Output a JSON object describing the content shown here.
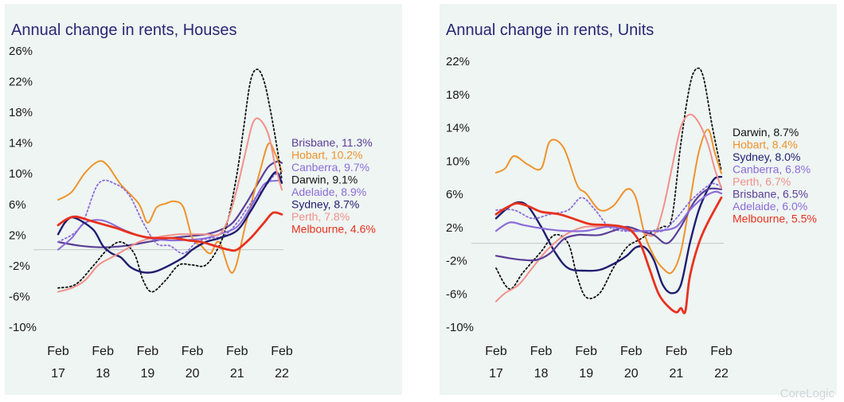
{
  "chart_data": [
    {
      "type": "line",
      "title": "Annual change in rents, Houses",
      "ylim": [
        -10,
        26
      ],
      "y_ticks": [
        26,
        22,
        18,
        14,
        10,
        6,
        2,
        -2,
        -6,
        -10
      ],
      "y_tick_labels": [
        "26%",
        "22%",
        "18%",
        "14%",
        "10%",
        "6%",
        "2%",
        "-2%",
        "-6%",
        "-10%"
      ],
      "x_ticks": [
        2017,
        2018,
        2019,
        2020,
        2021,
        2022
      ],
      "x_tick_labels": [
        [
          "Feb",
          "17"
        ],
        [
          "Feb",
          "18"
        ],
        [
          "Feb",
          "19"
        ],
        [
          "Feb",
          "20"
        ],
        [
          "Feb",
          "21"
        ],
        [
          "Feb",
          "22"
        ]
      ],
      "series": [
        {
          "name": "Brisbane",
          "color": "#5b3e96",
          "dash": false,
          "width": 2.2,
          "x": [
            2017,
            2017.5,
            2018,
            2018.5,
            2019,
            2019.5,
            2020,
            2020.3,
            2020.6,
            2020.9,
            2021.2,
            2021.5,
            2021.7,
            2021.9,
            2022
          ],
          "y": [
            1,
            0.5,
            0.3,
            0.5,
            1,
            1.5,
            1.8,
            2,
            2.5,
            3.5,
            6,
            9,
            10.8,
            11.5,
            11.3
          ]
        },
        {
          "name": "Hobart",
          "color": "#f0922b",
          "dash": false,
          "width": 2,
          "x": [
            2017,
            2017.3,
            2017.6,
            2017.9,
            2018.1,
            2018.4,
            2018.8,
            2019.0,
            2019.2,
            2019.4,
            2019.6,
            2019.8,
            2020,
            2020.2,
            2020.4,
            2020.6,
            2020.9,
            2021.2,
            2021.5,
            2021.7,
            2021.85,
            2022
          ],
          "y": [
            6.5,
            7.5,
            10,
            11.5,
            11,
            8.5,
            6,
            3.5,
            5.5,
            6,
            6.3,
            5.5,
            1.5,
            0.5,
            -0.5,
            1,
            -3,
            3.5,
            10,
            13.8,
            12.5,
            10.2
          ]
        },
        {
          "name": "Canberra",
          "color": "#8c6cd8",
          "dash": true,
          "width": 1.8,
          "x": [
            2017,
            2017.5,
            2017.9,
            2018.3,
            2018.6,
            2018.9,
            2019.2,
            2019.5,
            2019.8,
            2020.1,
            2020.4,
            2020.7,
            2021,
            2021.3,
            2021.6,
            2021.85,
            2022
          ],
          "y": [
            1,
            3,
            8.6,
            8.5,
            7,
            3.5,
            0.8,
            0.5,
            -0.5,
            1,
            1.5,
            1.8,
            3.5,
            6,
            8,
            9.8,
            9.7
          ]
        },
        {
          "name": "Darwin",
          "color": "#111111",
          "dash": true,
          "width": 1.8,
          "x": [
            2017,
            2017.4,
            2017.8,
            2018.1,
            2018.4,
            2018.7,
            2018.9,
            2019.1,
            2019.4,
            2019.7,
            2020,
            2020.3,
            2020.6,
            2020.8,
            2021,
            2021.15,
            2021.3,
            2021.45,
            2021.6,
            2021.75,
            2021.9,
            2022
          ],
          "y": [
            -5,
            -4.5,
            -2,
            0,
            1,
            -0.5,
            -4,
            -5.5,
            -4,
            -2,
            -2,
            -2,
            0.5,
            4,
            10,
            16,
            22,
            23.5,
            22,
            18,
            13,
            9.1
          ]
        },
        {
          "name": "Adelaide",
          "color": "#8c6cd8",
          "dash": false,
          "width": 2,
          "x": [
            2017,
            2017.3,
            2017.6,
            2018,
            2018.5,
            2019,
            2019.5,
            2020,
            2020.3,
            2020.6,
            2021,
            2021.3,
            2021.6,
            2021.9,
            2022
          ],
          "y": [
            0,
            1.5,
            3.5,
            3.8,
            2.5,
            1.5,
            1.2,
            1.3,
            1.5,
            2,
            3,
            5.5,
            8.5,
            9,
            8.9
          ]
        },
        {
          "name": "Sydney",
          "color": "#1f1d6e",
          "dash": false,
          "width": 2.4,
          "x": [
            2017,
            2017.15,
            2017.3,
            2017.5,
            2017.8,
            2018,
            2018.2,
            2018.4,
            2018.6,
            2018.8,
            2019,
            2019.2,
            2019.5,
            2019.8,
            2020,
            2020.3,
            2020.6,
            2021,
            2021.3,
            2021.6,
            2021.8,
            2021.9,
            2022
          ],
          "y": [
            2,
            3.5,
            4.2,
            3.8,
            2.5,
            0.5,
            -0.5,
            -1,
            -2.2,
            -2.8,
            -3,
            -2.8,
            -2,
            -1,
            0,
            1,
            1.5,
            2.5,
            5,
            8,
            9.8,
            10,
            8.7
          ]
        },
        {
          "name": "Perth",
          "color": "#f2908a",
          "dash": false,
          "width": 2,
          "x": [
            2017,
            2017.3,
            2017.6,
            2017.9,
            2018.2,
            2018.5,
            2018.8,
            2019.1,
            2019.4,
            2019.7,
            2020,
            2020.3,
            2020.6,
            2020.8,
            2021,
            2021.2,
            2021.35,
            2021.5,
            2021.7,
            2021.85,
            2022
          ],
          "y": [
            -5.5,
            -5,
            -4,
            -2,
            -1,
            0,
            1,
            1.5,
            1.8,
            2,
            2,
            2,
            2,
            4,
            8,
            13,
            16.5,
            17,
            15,
            11,
            7.8
          ]
        },
        {
          "name": "Melbourne",
          "color": "#e8311d",
          "dash": false,
          "width": 2.8,
          "x": [
            2017,
            2017.2,
            2017.4,
            2017.7,
            2018,
            2018.3,
            2018.7,
            2019,
            2019.3,
            2019.6,
            2019.9,
            2020.2,
            2020.5,
            2020.8,
            2021,
            2021.3,
            2021.6,
            2021.8,
            2022
          ],
          "y": [
            3.2,
            4,
            4.3,
            3.8,
            3.3,
            2.8,
            2,
            1.6,
            1.5,
            1.5,
            1.2,
            1,
            0.5,
            0,
            0,
            1.5,
            3.5,
            4.8,
            4.6
          ]
        }
      ],
      "legend": [
        {
          "label": "Brisbane, 11.3%",
          "color": "#5b3e96"
        },
        {
          "label": "Hobart, 10.2%",
          "color": "#f0922b"
        },
        {
          "label": "Canberra, 9.7%",
          "color": "#8c6cd8"
        },
        {
          "label": "Darwin, 9.1%",
          "color": "#111111"
        },
        {
          "label": "Adelaide, 8.9%",
          "color": "#8c6cd8"
        },
        {
          "label": "Sydney, 8.7%",
          "color": "#1f1d6e"
        },
        {
          "label": "Perth, 7.8%",
          "color": "#f2908a"
        },
        {
          "label": "Melbourne, 4.6%",
          "color": "#e8311d"
        }
      ]
    },
    {
      "type": "line",
      "title": "Annual change in rents, Units",
      "ylim": [
        -10,
        22
      ],
      "y_ticks": [
        22,
        18,
        14,
        10,
        6,
        2,
        -2,
        -6,
        -10
      ],
      "y_tick_labels": [
        "22%",
        "18%",
        "14%",
        "10%",
        "6%",
        "2%",
        "-2%",
        "-6%",
        "-10%"
      ],
      "x_ticks": [
        2017,
        2018,
        2019,
        2020,
        2021,
        2022
      ],
      "x_tick_labels": [
        [
          "Feb",
          "17"
        ],
        [
          "Feb",
          "18"
        ],
        [
          "Feb",
          "19"
        ],
        [
          "Feb",
          "20"
        ],
        [
          "Feb",
          "21"
        ],
        [
          "Feb",
          "22"
        ]
      ],
      "series": [
        {
          "name": "Darwin",
          "color": "#111111",
          "dash": true,
          "width": 1.8,
          "x": [
            2017,
            2017.3,
            2017.6,
            2018,
            2018.3,
            2018.6,
            2018.8,
            2019,
            2019.3,
            2019.6,
            2019.9,
            2020.2,
            2020.5,
            2020.7,
            2020.9,
            2021.1,
            2021.3,
            2021.45,
            2021.6,
            2021.8,
            2022
          ],
          "y": [
            -3,
            -5.5,
            -3.5,
            -1,
            1,
            0,
            -4,
            -6.5,
            -6,
            -3,
            -0.5,
            0.5,
            1.5,
            2,
            3,
            12,
            19,
            21,
            20,
            14,
            8.7
          ]
        },
        {
          "name": "Hobart",
          "color": "#f0922b",
          "dash": false,
          "width": 2,
          "x": [
            2017,
            2017.2,
            2017.4,
            2017.7,
            2018,
            2018.2,
            2018.5,
            2018.8,
            2019,
            2019.3,
            2019.6,
            2019.9,
            2020.1,
            2020.3,
            2020.5,
            2020.7,
            2020.9,
            2021.1,
            2021.3,
            2021.5,
            2021.7,
            2021.85,
            2022
          ],
          "y": [
            8.5,
            9,
            10.5,
            9.5,
            9,
            12.3,
            11.5,
            7,
            6,
            4,
            4.5,
            6.5,
            5.5,
            1,
            -1.5,
            -3,
            -3.5,
            -1,
            5,
            11,
            13.7,
            11,
            8.4
          ]
        },
        {
          "name": "Sydney",
          "color": "#1f1d6e",
          "dash": false,
          "width": 2.4,
          "x": [
            2017,
            2017.2,
            2017.45,
            2017.7,
            2018,
            2018.3,
            2018.6,
            2019,
            2019.3,
            2019.6,
            2019.9,
            2020.1,
            2020.3,
            2020.5,
            2020.7,
            2020.9,
            2021.1,
            2021.3,
            2021.5,
            2021.7,
            2021.85,
            2022
          ],
          "y": [
            3,
            4,
            4.9,
            4.5,
            2,
            -1,
            -3,
            -3.3,
            -3.2,
            -2.5,
            -1.5,
            -0.5,
            -0.5,
            -2,
            -5,
            -6,
            -5,
            0,
            4,
            6.5,
            7.8,
            8.0
          ]
        },
        {
          "name": "Canberra",
          "color": "#8c6cd8",
          "dash": true,
          "width": 1.8,
          "x": [
            2017,
            2017.4,
            2017.8,
            2018.2,
            2018.6,
            2018.9,
            2019.2,
            2019.5,
            2019.8,
            2020.1,
            2020.4,
            2020.7,
            2021,
            2021.3,
            2021.6,
            2021.8,
            2022
          ],
          "y": [
            4,
            4,
            3,
            3.5,
            4,
            5.5,
            4,
            2,
            1.5,
            1.5,
            1.5,
            1.5,
            3,
            5,
            6.5,
            7.2,
            6.8
          ]
        },
        {
          "name": "Perth",
          "color": "#f2908a",
          "dash": false,
          "width": 2,
          "x": [
            2017,
            2017.2,
            2017.5,
            2017.8,
            2018.1,
            2018.4,
            2018.7,
            2019,
            2019.3,
            2019.6,
            2019.9,
            2020.2,
            2020.5,
            2020.7,
            2020.9,
            2021.1,
            2021.3,
            2021.5,
            2021.7,
            2021.85,
            2022
          ],
          "y": [
            -7,
            -6,
            -5,
            -3,
            -1,
            0.5,
            1.5,
            2,
            2,
            2,
            1.8,
            1.5,
            1,
            4,
            9,
            14,
            15.5,
            14.5,
            12,
            9,
            6.7
          ]
        },
        {
          "name": "Brisbane",
          "color": "#5b3e96",
          "dash": false,
          "width": 2.2,
          "x": [
            2017,
            2017.3,
            2017.6,
            2017.9,
            2018.2,
            2018.5,
            2018.8,
            2019,
            2019.3,
            2019.6,
            2019.9,
            2020.2,
            2020.5,
            2020.8,
            2021.1,
            2021.4,
            2021.7,
            2022
          ],
          "y": [
            -1.5,
            -1.8,
            -2,
            -2,
            -1.2,
            0.5,
            1,
            1,
            1,
            1.5,
            2,
            1.5,
            1,
            0,
            2,
            5,
            6.5,
            6.5
          ]
        },
        {
          "name": "Adelaide",
          "color": "#8c6cd8",
          "dash": false,
          "width": 2.2,
          "x": [
            2017,
            2017.3,
            2017.6,
            2018,
            2018.5,
            2019,
            2019.5,
            2020,
            2020.3,
            2020.6,
            2021,
            2021.3,
            2021.6,
            2021.85,
            2022
          ],
          "y": [
            1.5,
            2.5,
            2.2,
            1.8,
            1.5,
            1.5,
            2,
            1.5,
            1.5,
            1.5,
            2,
            4,
            5.5,
            6.2,
            6.0
          ]
        },
        {
          "name": "Melbourne",
          "color": "#e8311d",
          "dash": false,
          "width": 2.8,
          "x": [
            2017,
            2017.2,
            2017.45,
            2017.7,
            2018,
            2018.4,
            2018.8,
            2019.1,
            2019.5,
            2019.8,
            2020,
            2020.2,
            2020.4,
            2020.6,
            2020.8,
            2021,
            2021.1,
            2021.2,
            2021.3,
            2021.5,
            2021.7,
            2022
          ],
          "y": [
            3.5,
            4.2,
            4.8,
            4.5,
            3.8,
            3.5,
            2.8,
            2.3,
            2.2,
            2,
            1.5,
            0,
            -3,
            -6,
            -7.5,
            -8.3,
            -7.8,
            -8.2,
            -4,
            0,
            2.5,
            5.5
          ]
        }
      ],
      "legend": [
        {
          "label": "Darwin, 8.7%",
          "color": "#111111"
        },
        {
          "label": "Hobart, 8.4%",
          "color": "#f0922b"
        },
        {
          "label": "Sydney, 8.0%",
          "color": "#1f1d6e"
        },
        {
          "label": "Canberra, 6.8%",
          "color": "#8c6cd8"
        },
        {
          "label": "Perth, 6.7%",
          "color": "#f2908a"
        },
        {
          "label": "Brisbane, 6.5%",
          "color": "#5b3e96"
        },
        {
          "label": "Adelaide, 6.0%",
          "color": "#8c6cd8"
        },
        {
          "label": "Melbourne, 5.5%",
          "color": "#e8311d"
        }
      ]
    }
  ],
  "watermark": "CoreLogic"
}
